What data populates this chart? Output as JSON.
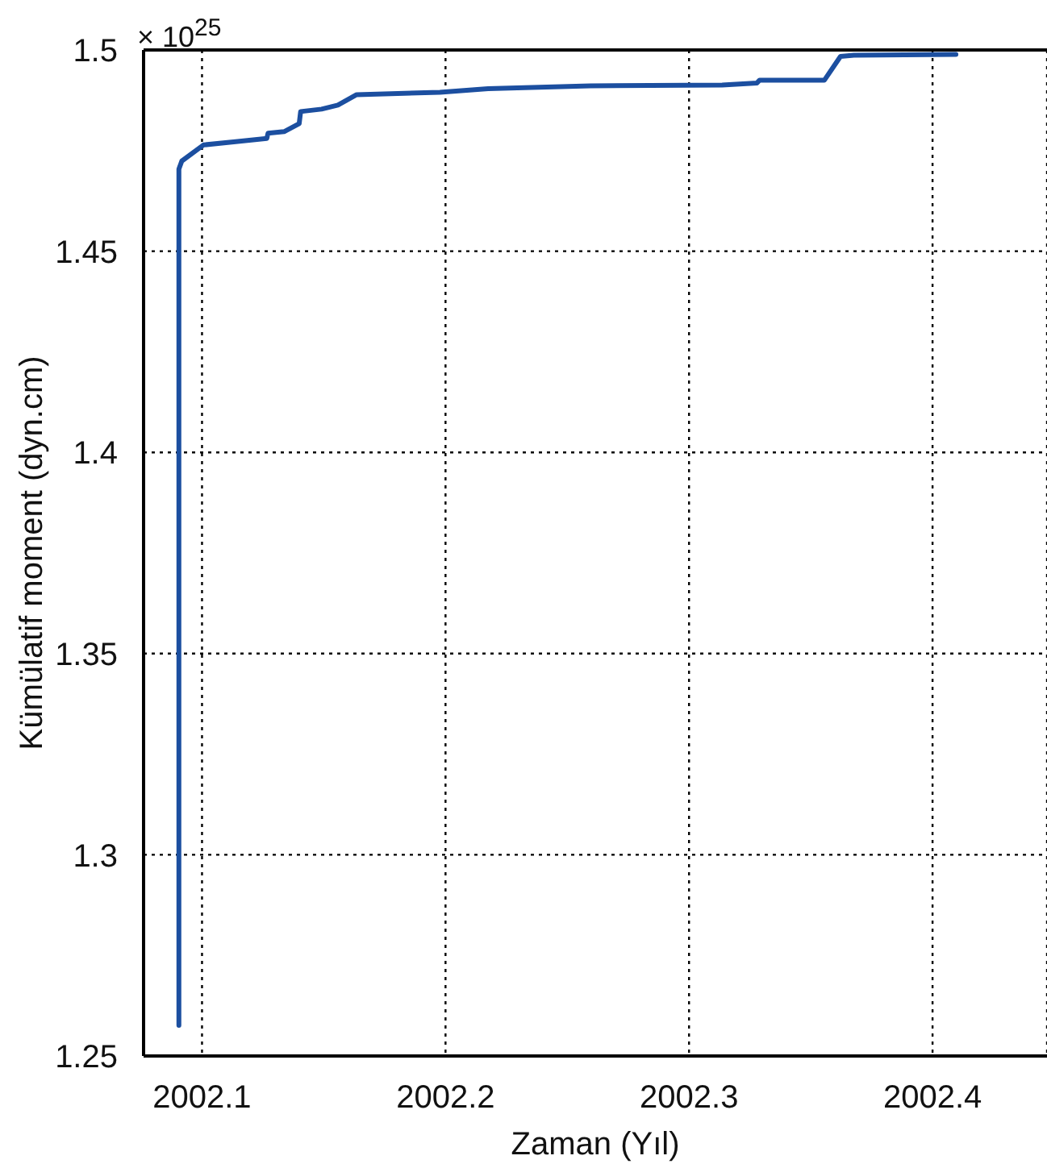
{
  "chart_data": {
    "type": "line",
    "xlabel": "Zaman (Yıl)",
    "ylabel": "Kümülatif moment (dyn.cm)",
    "annotations": [
      "× 10$^{25}$"
    ],
    "x": [
      2002.0905,
      2002.0905,
      2002.0917,
      2002.1006,
      2002.1138,
      2002.1266,
      2002.1271,
      2002.1337,
      2002.1399,
      2002.1405,
      2002.1491,
      2002.1558,
      2002.1635,
      2002.1977,
      2002.2175,
      2002.2595,
      2002.3136,
      2002.3279,
      2002.329,
      2002.3556,
      2002.3622,
      2002.3677,
      2002.4096
    ],
    "series": [
      {
        "color": "#1c4fa0",
        "values": [
          1.2576,
          1.4704,
          1.4724,
          1.4764,
          1.4772,
          1.478,
          1.4793,
          1.4797,
          1.4817,
          1.4847,
          1.4853,
          1.4863,
          1.4889,
          1.4895,
          1.4904,
          1.4911,
          1.4913,
          1.4918,
          1.4925,
          1.4925,
          1.4984,
          1.4987,
          1.4989
        ]
      }
    ],
    "xlim": [
      2002.076,
      2002.447
    ],
    "xticks": [
      2002.1,
      2002.2,
      2002.3,
      2002.4
    ],
    "ylim": [
      1.25,
      1.5
    ],
    "yticks": [
      1.25,
      1.3,
      1.35,
      1.4,
      1.45,
      1.5
    ],
    "grid": true
  }
}
